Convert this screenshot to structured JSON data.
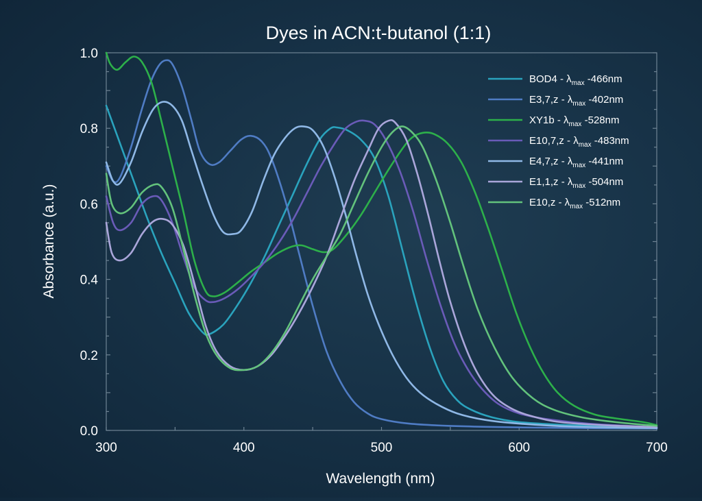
{
  "chart_data": {
    "type": "line",
    "title": "Dyes in ACN:t-butanol (1:1)",
    "xlabel": "Wavelength (nm)",
    "ylabel": "Absorbance (a.u.)",
    "xlim": [
      300,
      700
    ],
    "ylim": [
      0,
      1.0
    ],
    "xticks": [
      300,
      400,
      500,
      600,
      700
    ],
    "xtick_labels": [
      "300",
      "400",
      "500",
      "600",
      "700"
    ],
    "yticks": [
      0,
      0.2,
      0.4,
      0.6,
      0.8,
      1.0
    ],
    "ytick_labels": [
      "0.0",
      "0.2",
      "0.4",
      "0.6",
      "0.8",
      "1.0"
    ],
    "grid": false,
    "legend_position": "top-right",
    "series": [
      {
        "name": "BOD4 -",
        "legend_lambda_sym": "λ",
        "legend_lambda_sub": "max",
        "legend_suffix": "-466nm",
        "color": "#2aa3bd",
        "points": [
          [
            300,
            0.86
          ],
          [
            310,
            0.76
          ],
          [
            320,
            0.66
          ],
          [
            330,
            0.56
          ],
          [
            340,
            0.47
          ],
          [
            350,
            0.39
          ],
          [
            360,
            0.31
          ],
          [
            370,
            0.26
          ],
          [
            375,
            0.255
          ],
          [
            385,
            0.28
          ],
          [
            395,
            0.33
          ],
          [
            405,
            0.39
          ],
          [
            415,
            0.46
          ],
          [
            425,
            0.54
          ],
          [
            435,
            0.62
          ],
          [
            445,
            0.7
          ],
          [
            455,
            0.77
          ],
          [
            463,
            0.8
          ],
          [
            468,
            0.802
          ],
          [
            475,
            0.795
          ],
          [
            485,
            0.77
          ],
          [
            495,
            0.72
          ],
          [
            505,
            0.62
          ],
          [
            515,
            0.48
          ],
          [
            525,
            0.34
          ],
          [
            535,
            0.22
          ],
          [
            545,
            0.13
          ],
          [
            555,
            0.08
          ],
          [
            565,
            0.055
          ],
          [
            580,
            0.035
          ],
          [
            600,
            0.022
          ],
          [
            630,
            0.015
          ],
          [
            660,
            0.012
          ],
          [
            700,
            0.008
          ]
        ]
      },
      {
        "name": "E3,7,z -",
        "legend_lambda_sym": "λ",
        "legend_lambda_sub": "max",
        "legend_suffix": "-402nm",
        "color": "#4f7cc4",
        "points": [
          [
            300,
            0.7
          ],
          [
            305,
            0.66
          ],
          [
            310,
            0.67
          ],
          [
            318,
            0.75
          ],
          [
            325,
            0.84
          ],
          [
            332,
            0.92
          ],
          [
            338,
            0.965
          ],
          [
            343,
            0.98
          ],
          [
            348,
            0.97
          ],
          [
            355,
            0.91
          ],
          [
            362,
            0.82
          ],
          [
            368,
            0.74
          ],
          [
            375,
            0.705
          ],
          [
            382,
            0.71
          ],
          [
            390,
            0.74
          ],
          [
            398,
            0.77
          ],
          [
            405,
            0.78
          ],
          [
            413,
            0.765
          ],
          [
            420,
            0.72
          ],
          [
            430,
            0.61
          ],
          [
            440,
            0.47
          ],
          [
            450,
            0.33
          ],
          [
            460,
            0.21
          ],
          [
            470,
            0.13
          ],
          [
            480,
            0.075
          ],
          [
            490,
            0.045
          ],
          [
            500,
            0.03
          ],
          [
            520,
            0.018
          ],
          [
            550,
            0.012
          ],
          [
            600,
            0.008
          ],
          [
            650,
            0.006
          ],
          [
            700,
            0.005
          ]
        ]
      },
      {
        "name": "XY1b -",
        "legend_lambda_sym": "λ",
        "legend_lambda_sub": "max",
        "legend_suffix": " -528nm",
        "color": "#2db04a",
        "points": [
          [
            300,
            1.0
          ],
          [
            303,
            0.97
          ],
          [
            308,
            0.955
          ],
          [
            314,
            0.975
          ],
          [
            320,
            0.99
          ],
          [
            326,
            0.975
          ],
          [
            333,
            0.92
          ],
          [
            340,
            0.82
          ],
          [
            348,
            0.7
          ],
          [
            356,
            0.58
          ],
          [
            364,
            0.45
          ],
          [
            372,
            0.37
          ],
          [
            378,
            0.355
          ],
          [
            386,
            0.365
          ],
          [
            395,
            0.39
          ],
          [
            405,
            0.42
          ],
          [
            415,
            0.445
          ],
          [
            425,
            0.47
          ],
          [
            435,
            0.487
          ],
          [
            442,
            0.49
          ],
          [
            450,
            0.48
          ],
          [
            458,
            0.472
          ],
          [
            465,
            0.48
          ],
          [
            475,
            0.52
          ],
          [
            485,
            0.57
          ],
          [
            495,
            0.63
          ],
          [
            505,
            0.69
          ],
          [
            515,
            0.745
          ],
          [
            522,
            0.775
          ],
          [
            530,
            0.788
          ],
          [
            538,
            0.785
          ],
          [
            548,
            0.76
          ],
          [
            558,
            0.71
          ],
          [
            568,
            0.63
          ],
          [
            578,
            0.53
          ],
          [
            588,
            0.42
          ],
          [
            598,
            0.31
          ],
          [
            608,
            0.22
          ],
          [
            618,
            0.15
          ],
          [
            628,
            0.1
          ],
          [
            640,
            0.065
          ],
          [
            655,
            0.042
          ],
          [
            670,
            0.032
          ],
          [
            690,
            0.022
          ],
          [
            700,
            0.014
          ]
        ]
      },
      {
        "name": "E10,7,z -",
        "legend_lambda_sym": "λ",
        "legend_lambda_sub": "max",
        "legend_suffix": "-483nm",
        "color": "#6a5bb8",
        "points": [
          [
            300,
            0.62
          ],
          [
            305,
            0.55
          ],
          [
            310,
            0.53
          ],
          [
            318,
            0.55
          ],
          [
            326,
            0.6
          ],
          [
            334,
            0.62
          ],
          [
            340,
            0.61
          ],
          [
            348,
            0.55
          ],
          [
            356,
            0.46
          ],
          [
            364,
            0.38
          ],
          [
            372,
            0.345
          ],
          [
            378,
            0.34
          ],
          [
            386,
            0.35
          ],
          [
            396,
            0.375
          ],
          [
            406,
            0.41
          ],
          [
            416,
            0.45
          ],
          [
            426,
            0.5
          ],
          [
            436,
            0.56
          ],
          [
            446,
            0.63
          ],
          [
            456,
            0.7
          ],
          [
            466,
            0.76
          ],
          [
            474,
            0.8
          ],
          [
            482,
            0.818
          ],
          [
            488,
            0.82
          ],
          [
            495,
            0.81
          ],
          [
            503,
            0.77
          ],
          [
            513,
            0.69
          ],
          [
            523,
            0.58
          ],
          [
            533,
            0.45
          ],
          [
            543,
            0.33
          ],
          [
            553,
            0.23
          ],
          [
            563,
            0.16
          ],
          [
            573,
            0.11
          ],
          [
            585,
            0.07
          ],
          [
            600,
            0.045
          ],
          [
            620,
            0.03
          ],
          [
            650,
            0.018
          ],
          [
            680,
            0.012
          ],
          [
            700,
            0.008
          ]
        ]
      },
      {
        "name": "E4,7,z -",
        "legend_lambda_sym": "λ",
        "legend_lambda_sub": "max",
        "legend_suffix": "-441nm",
        "color": "#8fb8e6",
        "points": [
          [
            300,
            0.71
          ],
          [
            305,
            0.66
          ],
          [
            310,
            0.655
          ],
          [
            318,
            0.71
          ],
          [
            326,
            0.79
          ],
          [
            334,
            0.85
          ],
          [
            341,
            0.87
          ],
          [
            348,
            0.86
          ],
          [
            355,
            0.82
          ],
          [
            362,
            0.74
          ],
          [
            370,
            0.65
          ],
          [
            378,
            0.57
          ],
          [
            385,
            0.525
          ],
          [
            392,
            0.52
          ],
          [
            398,
            0.53
          ],
          [
            406,
            0.58
          ],
          [
            414,
            0.66
          ],
          [
            422,
            0.73
          ],
          [
            430,
            0.775
          ],
          [
            437,
            0.8
          ],
          [
            443,
            0.805
          ],
          [
            450,
            0.795
          ],
          [
            458,
            0.75
          ],
          [
            466,
            0.67
          ],
          [
            474,
            0.57
          ],
          [
            482,
            0.46
          ],
          [
            490,
            0.36
          ],
          [
            498,
            0.28
          ],
          [
            508,
            0.2
          ],
          [
            518,
            0.14
          ],
          [
            528,
            0.1
          ],
          [
            540,
            0.07
          ],
          [
            555,
            0.045
          ],
          [
            575,
            0.028
          ],
          [
            600,
            0.018
          ],
          [
            640,
            0.01
          ],
          [
            700,
            0.006
          ]
        ]
      },
      {
        "name": "E1,1,z -",
        "legend_lambda_sym": "λ",
        "legend_lambda_sub": "max",
        "legend_suffix": "-504nm",
        "color": "#aaa6da",
        "points": [
          [
            300,
            0.55
          ],
          [
            304,
            0.47
          ],
          [
            310,
            0.45
          ],
          [
            318,
            0.47
          ],
          [
            326,
            0.52
          ],
          [
            334,
            0.553
          ],
          [
            341,
            0.56
          ],
          [
            348,
            0.545
          ],
          [
            356,
            0.49
          ],
          [
            364,
            0.39
          ],
          [
            372,
            0.28
          ],
          [
            380,
            0.21
          ],
          [
            390,
            0.17
          ],
          [
            400,
            0.16
          ],
          [
            410,
            0.17
          ],
          [
            420,
            0.2
          ],
          [
            430,
            0.25
          ],
          [
            440,
            0.31
          ],
          [
            450,
            0.38
          ],
          [
            460,
            0.46
          ],
          [
            470,
            0.56
          ],
          [
            480,
            0.66
          ],
          [
            490,
            0.74
          ],
          [
            498,
            0.8
          ],
          [
            505,
            0.82
          ],
          [
            510,
            0.815
          ],
          [
            518,
            0.77
          ],
          [
            526,
            0.68
          ],
          [
            534,
            0.57
          ],
          [
            542,
            0.45
          ],
          [
            550,
            0.34
          ],
          [
            560,
            0.23
          ],
          [
            570,
            0.15
          ],
          [
            582,
            0.09
          ],
          [
            596,
            0.055
          ],
          [
            612,
            0.035
          ],
          [
            630,
            0.022
          ],
          [
            660,
            0.014
          ],
          [
            700,
            0.009
          ]
        ]
      },
      {
        "name": "E10,z -",
        "legend_lambda_sym": "λ",
        "legend_lambda_sub": "max",
        "legend_suffix": " -512nm",
        "color": "#63c27c",
        "points": [
          [
            300,
            0.68
          ],
          [
            304,
            0.6
          ],
          [
            310,
            0.575
          ],
          [
            318,
            0.59
          ],
          [
            326,
            0.63
          ],
          [
            334,
            0.65
          ],
          [
            340,
            0.645
          ],
          [
            348,
            0.59
          ],
          [
            356,
            0.48
          ],
          [
            364,
            0.36
          ],
          [
            372,
            0.26
          ],
          [
            380,
            0.2
          ],
          [
            390,
            0.165
          ],
          [
            400,
            0.16
          ],
          [
            410,
            0.17
          ],
          [
            420,
            0.205
          ],
          [
            430,
            0.26
          ],
          [
            440,
            0.33
          ],
          [
            450,
            0.4
          ],
          [
            460,
            0.46
          ],
          [
            470,
            0.52
          ],
          [
            480,
            0.6
          ],
          [
            490,
            0.68
          ],
          [
            500,
            0.75
          ],
          [
            508,
            0.79
          ],
          [
            515,
            0.805
          ],
          [
            522,
            0.79
          ],
          [
            530,
            0.75
          ],
          [
            540,
            0.66
          ],
          [
            550,
            0.55
          ],
          [
            560,
            0.43
          ],
          [
            570,
            0.32
          ],
          [
            582,
            0.22
          ],
          [
            595,
            0.14
          ],
          [
            610,
            0.085
          ],
          [
            625,
            0.055
          ],
          [
            645,
            0.035
          ],
          [
            670,
            0.022
          ],
          [
            700,
            0.012
          ]
        ]
      }
    ]
  }
}
